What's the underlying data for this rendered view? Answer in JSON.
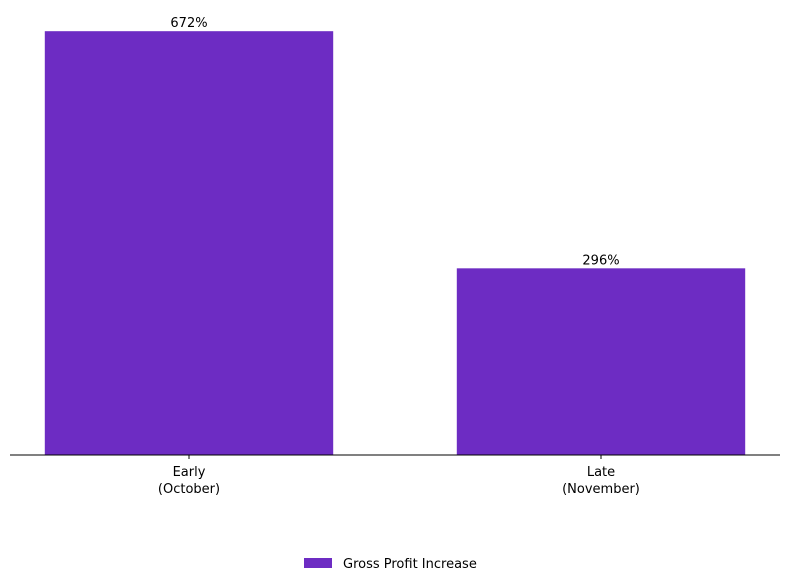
{
  "chart_data": {
    "type": "bar",
    "categories": [
      "Early\n(October)",
      "Late\n(November)"
    ],
    "series": [
      {
        "name": "Gross Profit Increase",
        "color": "#6d2cc3",
        "values": [
          672,
          296
        ],
        "value_labels": [
          "672%",
          "296%"
        ]
      }
    ],
    "ylim": [
      0,
      705.6
    ],
    "legend": "bottom"
  }
}
